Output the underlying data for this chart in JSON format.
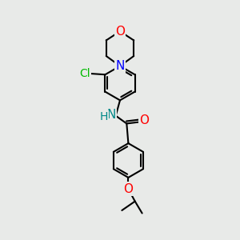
{
  "background_color": "#e8eae8",
  "bond_color": "#000000",
  "bond_width": 1.5,
  "atom_colors": {
    "O": "#ff0000",
    "N": "#0000ff",
    "Cl": "#00bb00",
    "NH": "#008888",
    "C": "#000000"
  },
  "font_size": 9,
  "figsize": [
    3.0,
    3.0
  ],
  "dpi": 100
}
